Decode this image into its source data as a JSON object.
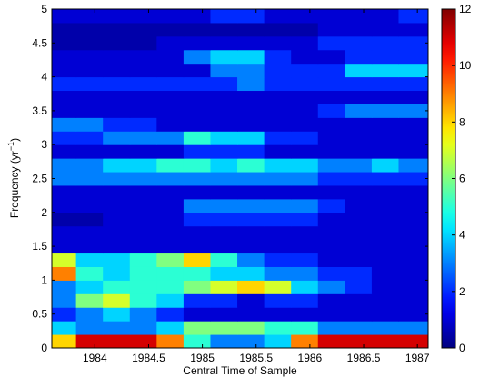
{
  "chart_data": {
    "type": "heatmap",
    "xlabel": "Central Time of Sample",
    "ylabel": [
      "Frequency (yr",
      "−1",
      ")"
    ],
    "xlim": [
      1983.6,
      1987.1
    ],
    "xticks": [
      1984,
      1984.5,
      1985,
      1985.5,
      1986,
      1986.5,
      1987
    ],
    "ylim": [
      0,
      5
    ],
    "yticks": [
      0,
      0.5,
      1,
      1.5,
      2,
      2.5,
      3,
      3.5,
      4,
      4.5,
      5
    ],
    "clim": [
      0,
      12
    ],
    "cticks": [
      0,
      2,
      4,
      6,
      8,
      10,
      12
    ],
    "colormap": "jet",
    "x": [
      1983.7,
      1983.95,
      1984.2,
      1984.45,
      1984.7,
      1984.95,
      1985.2,
      1985.45,
      1985.7,
      1985.95,
      1986.2,
      1986.45,
      1986.7,
      1986.95
    ],
    "y": [
      0.1,
      0.3,
      0.5,
      0.7,
      0.9,
      1.1,
      1.3,
      1.5,
      1.7,
      1.9,
      2.1,
      2.3,
      2.5,
      2.7,
      2.9,
      3.1,
      3.3,
      3.5,
      3.7,
      3.9,
      4.1,
      4.3,
      4.5,
      4.7,
      4.9
    ],
    "z": [
      [
        8,
        11,
        11,
        11,
        9,
        5,
        3,
        3,
        4,
        9,
        11,
        11,
        11,
        11
      ],
      [
        4,
        3,
        3,
        3,
        4,
        6,
        6,
        6,
        5,
        5,
        3,
        3,
        3,
        3
      ],
      [
        2,
        3,
        4,
        3,
        2,
        1,
        1,
        1,
        1,
        1,
        1,
        1,
        1,
        1
      ],
      [
        3,
        6,
        7,
        5,
        4,
        2,
        2,
        1,
        2,
        2,
        1,
        1,
        1,
        1
      ],
      [
        3,
        4,
        5,
        5,
        5,
        6,
        7,
        8,
        7,
        4,
        3,
        2,
        1,
        1
      ],
      [
        9,
        5,
        4,
        5,
        5,
        5,
        4,
        4,
        3,
        3,
        2,
        2,
        1,
        1
      ],
      [
        7,
        4,
        4,
        5,
        6,
        8,
        5,
        3,
        2,
        2,
        1,
        1,
        1,
        1
      ],
      [
        1,
        1,
        1,
        1,
        1,
        1,
        1,
        1,
        1,
        1,
        1,
        1,
        1,
        1
      ],
      [
        1,
        1,
        1,
        1,
        1,
        1,
        1,
        1,
        1,
        1,
        1,
        1,
        1,
        1
      ],
      [
        0.5,
        0.5,
        1,
        1,
        1,
        2,
        2,
        2,
        2,
        2,
        1,
        1,
        1,
        1
      ],
      [
        1,
        1,
        1,
        1,
        1,
        3,
        3,
        3,
        3,
        3,
        2,
        1,
        1,
        1
      ],
      [
        1,
        1,
        1,
        1,
        1,
        1,
        1,
        1,
        1,
        1,
        1,
        1,
        1,
        1
      ],
      [
        3,
        3,
        3,
        3,
        3,
        3,
        3,
        3,
        3,
        3,
        2,
        2,
        2,
        2
      ],
      [
        3,
        3,
        4,
        4,
        5,
        5,
        4,
        5,
        4,
        4,
        3,
        3,
        4,
        3
      ],
      [
        1,
        1,
        1,
        1,
        1,
        2,
        2,
        2,
        1,
        1,
        1,
        1,
        1,
        1
      ],
      [
        2,
        2,
        3,
        3,
        3,
        5,
        4,
        4,
        2,
        2,
        1,
        1,
        1,
        1
      ],
      [
        3,
        3,
        2,
        2,
        1,
        1,
        1,
        1,
        1,
        1,
        1,
        1,
        1,
        1
      ],
      [
        1,
        1,
        1,
        1,
        1,
        1,
        1,
        1,
        1,
        1,
        2,
        3,
        3,
        3
      ],
      [
        1,
        1,
        1,
        1,
        1,
        1,
        1,
        1,
        1,
        1,
        1,
        1,
        1,
        1
      ],
      [
        2,
        2,
        2,
        2,
        2,
        2,
        2,
        3,
        2,
        2,
        2,
        2,
        2,
        2
      ],
      [
        1,
        1,
        1,
        1,
        1,
        1,
        3,
        3,
        2,
        2,
        2,
        4,
        4,
        4
      ],
      [
        1,
        1,
        1,
        1,
        1,
        3,
        4,
        4,
        2,
        1,
        1,
        2,
        2,
        2
      ],
      [
        0.5,
        0.5,
        0.5,
        0.5,
        1,
        1,
        1,
        1,
        1,
        1,
        2,
        2,
        2,
        2
      ],
      [
        0.5,
        0.5,
        0.5,
        0.5,
        0.5,
        0.5,
        0.5,
        0.5,
        0.5,
        0.5,
        1,
        1,
        1,
        1
      ],
      [
        1,
        1,
        1,
        1,
        1,
        1,
        2,
        2,
        1,
        1,
        1,
        1,
        1,
        2
      ]
    ]
  }
}
